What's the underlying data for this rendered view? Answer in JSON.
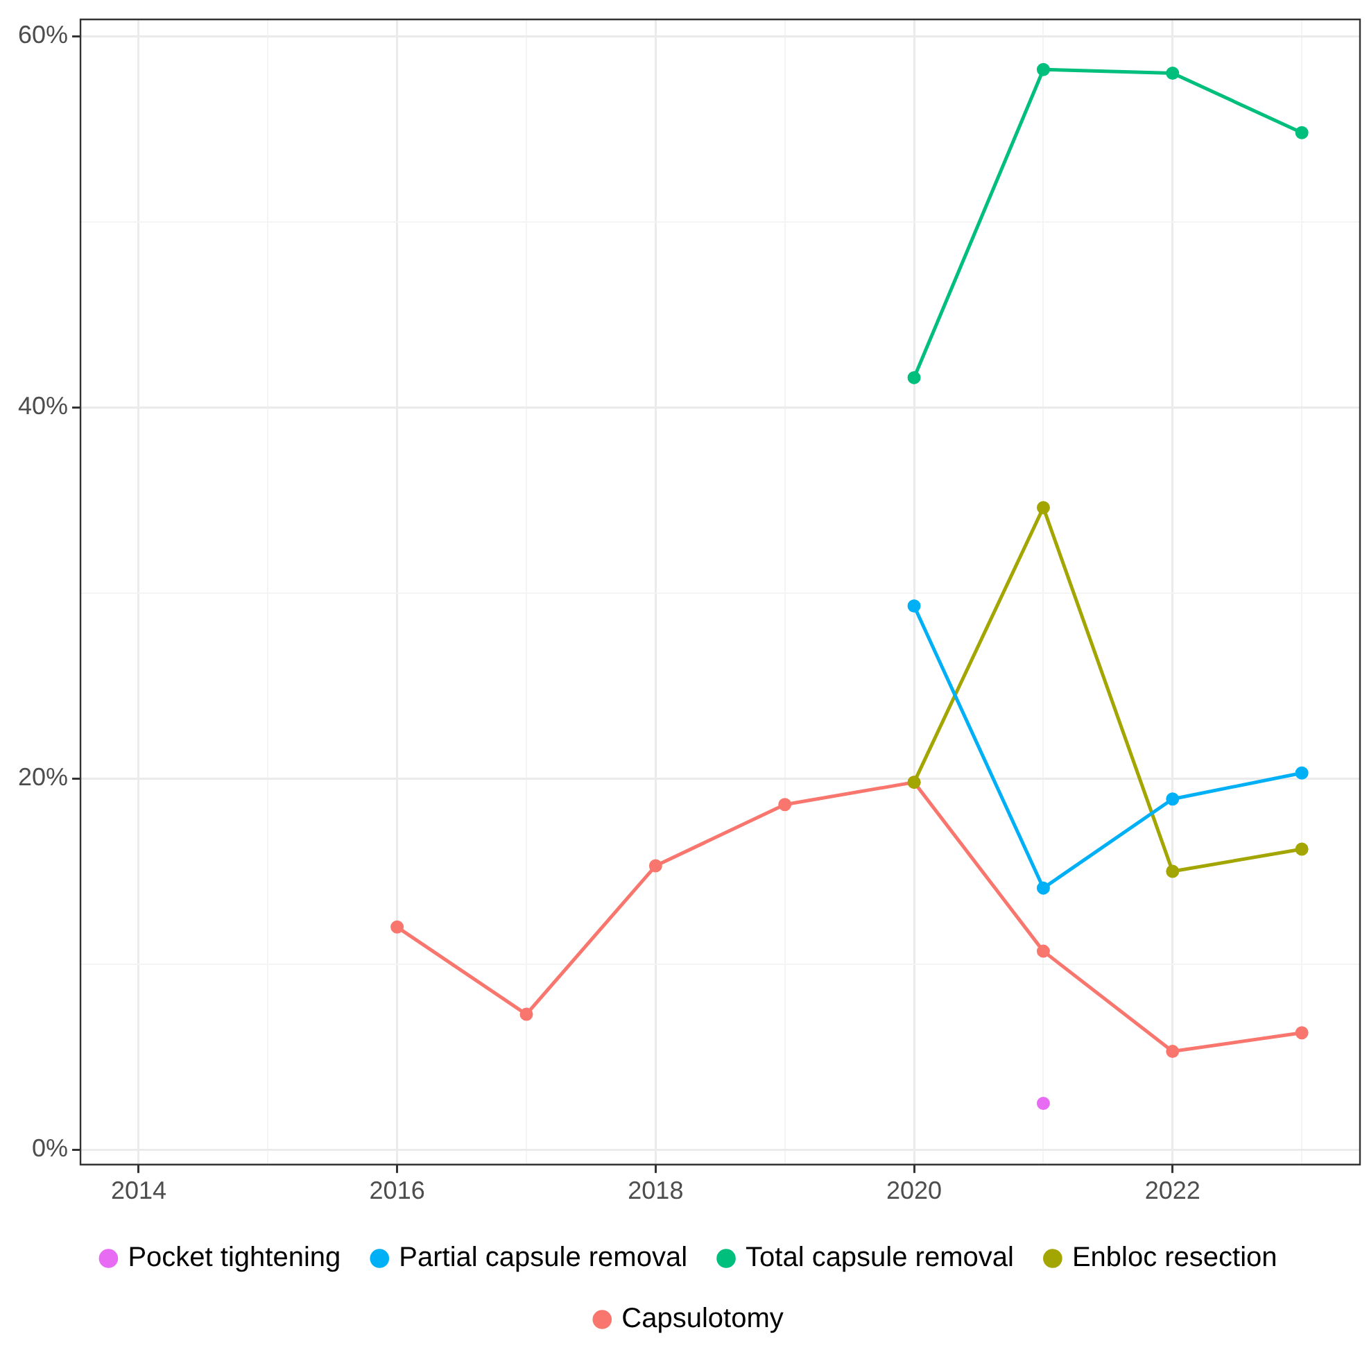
{
  "chart_data": {
    "type": "line",
    "x": [
      2016,
      2017,
      2018,
      2019,
      2020,
      2021,
      2022,
      2023
    ],
    "series": [
      {
        "name": "Capsulotomy",
        "color": "#f8766d",
        "values": [
          12.0,
          7.3,
          15.3,
          18.6,
          19.8,
          10.7,
          5.3,
          6.3
        ]
      },
      {
        "name": "Enbloc resection",
        "color": "#a3a500",
        "values": [
          null,
          null,
          null,
          null,
          19.8,
          34.6,
          15.0,
          16.2
        ]
      },
      {
        "name": "Total capsule removal",
        "color": "#00bf7d",
        "values": [
          null,
          null,
          null,
          null,
          41.6,
          58.2,
          58.0,
          54.8
        ]
      },
      {
        "name": "Partial capsule removal",
        "color": "#00b0f6",
        "values": [
          null,
          null,
          null,
          null,
          29.3,
          14.1,
          18.9,
          20.3
        ]
      },
      {
        "name": "Pocket tightening",
        "color": "#e76bf3",
        "values": [
          null,
          null,
          null,
          null,
          null,
          2.5,
          null,
          null
        ]
      }
    ],
    "xlim": [
      2013.55,
      2023.45
    ],
    "xticks": [
      2014,
      {
        "value": 2015,
        "label": null
      },
      2016,
      {
        "value": 2017,
        "label": null
      },
      2018,
      {
        "value": 2019,
        "label": null
      },
      2020,
      {
        "value": 2021,
        "label": null
      },
      2022,
      {
        "value": 2023,
        "label": null
      }
    ],
    "ylim": [
      -0.8,
      60.9
    ],
    "yticks": [
      {
        "value": 0,
        "label": "0%"
      },
      {
        "value": 10,
        "label": null
      },
      {
        "value": 20,
        "label": "20%"
      },
      {
        "value": 30,
        "label": null
      },
      {
        "value": 40,
        "label": "40%"
      },
      {
        "value": 50,
        "label": null
      },
      {
        "value": 60,
        "label": "60%"
      }
    ],
    "grid": true,
    "legend": "bottom",
    "marker": "circle",
    "line_style": "solid"
  }
}
